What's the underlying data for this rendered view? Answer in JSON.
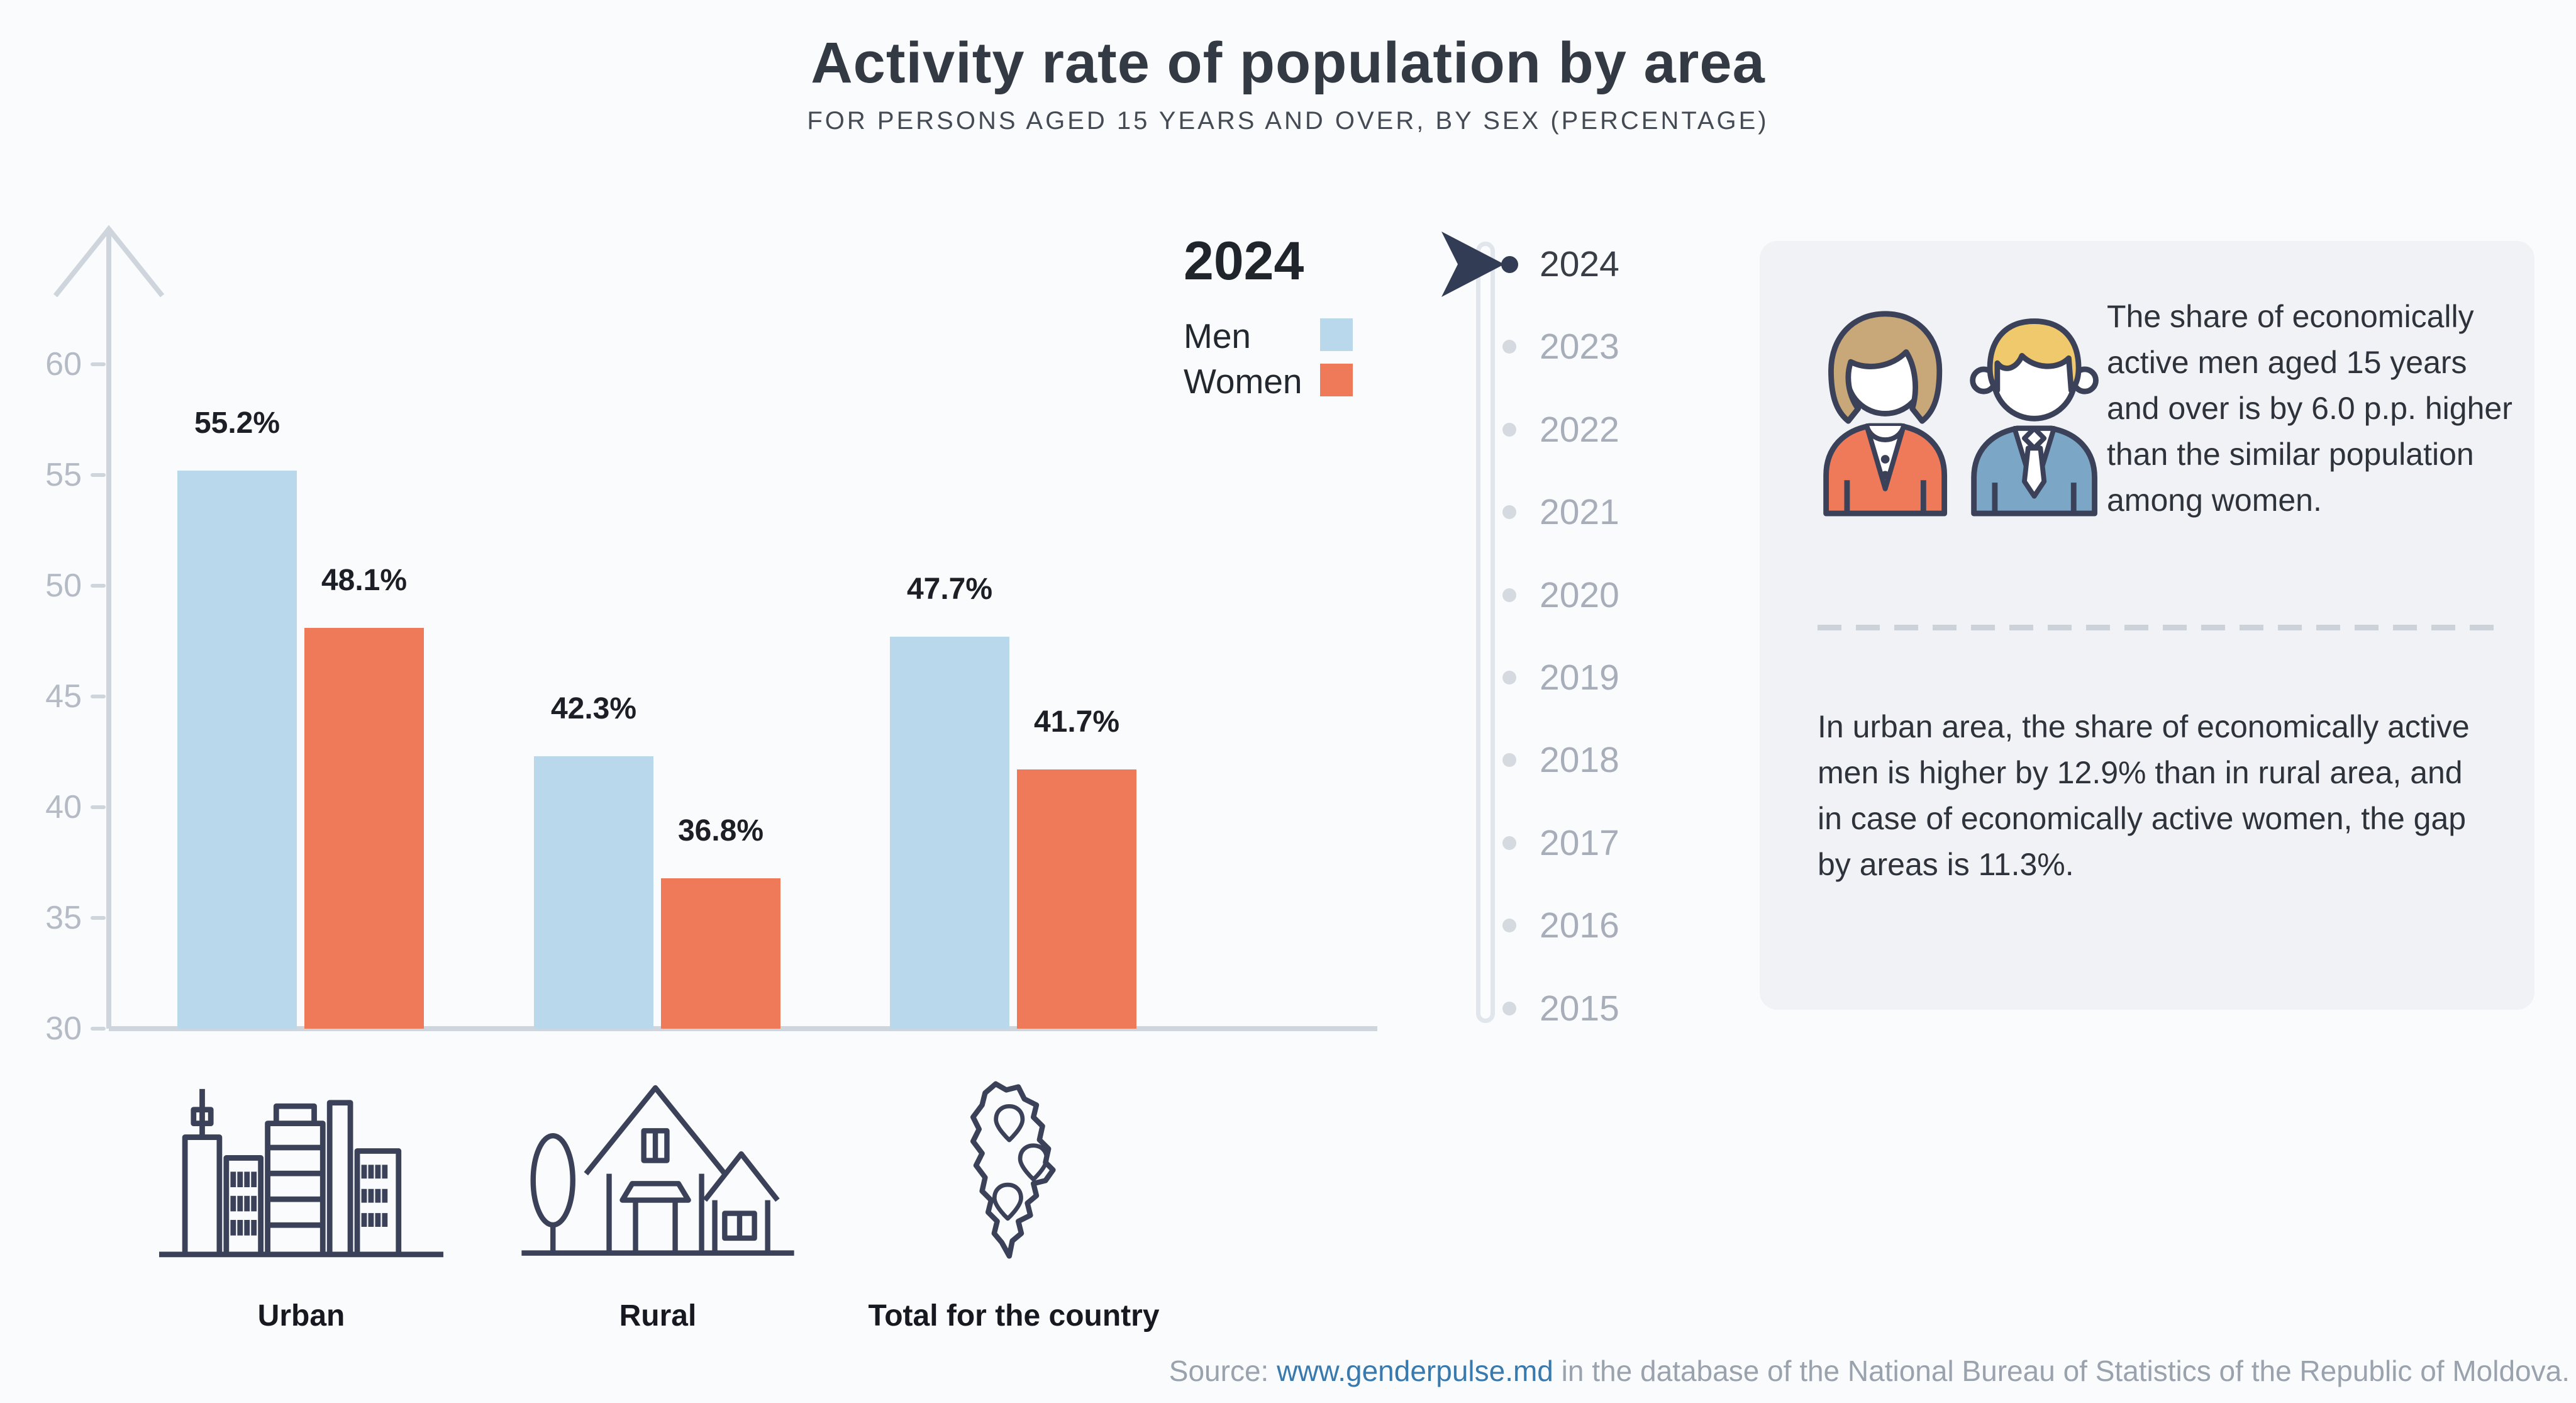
{
  "title": "Activity rate of population by area",
  "subtitle": "FOR PERSONS AGED 15 YEARS AND OVER, BY SEX (PERCENTAGE)",
  "colors": {
    "men": "#b9d8ec",
    "women": "#ee7a5a",
    "navy": "#333c55",
    "outline": "#3a4158",
    "suit": "#7ca6c6",
    "hair_woman": "#c8a878",
    "hair_man": "#f0c96c",
    "axis": "#cfd5dc",
    "tick_text": "#b4bbc5",
    "muted_text": "#a7aeb9",
    "dark_text": "#383d46",
    "link": "#3879ae",
    "card_bg": "#f0f2f6",
    "page_bg": "#fafbfc",
    "dot_inactive": "#d5dae1",
    "divider": "#ccd2d9"
  },
  "legend": {
    "year": "2024",
    "men_label": "Men",
    "women_label": "Women"
  },
  "chart_data": {
    "type": "bar",
    "categories": [
      "Urban",
      "Rural",
      "Total for the country"
    ],
    "series": [
      {
        "name": "Men",
        "color": "#b9d8ec",
        "values": [
          55.2,
          42.3,
          47.7
        ]
      },
      {
        "name": "Women",
        "color": "#ee7a5a",
        "values": [
          48.1,
          36.8,
          41.7
        ]
      }
    ],
    "value_labels": {
      "Men": [
        "55.2%",
        "42.3%",
        "47.7%"
      ],
      "Women": [
        "48.1%",
        "36.8%",
        "41.7%"
      ]
    },
    "title": "Activity rate of population by area",
    "xlabel": "",
    "ylabel": "",
    "ylim": [
      30,
      62
    ],
    "yticks": [
      30,
      35,
      40,
      45,
      50,
      55,
      60
    ],
    "grid": false,
    "legend_position": "top-right",
    "unit": "%"
  },
  "timeline": {
    "years": [
      "2024",
      "2023",
      "2022",
      "2021",
      "2020",
      "2019",
      "2018",
      "2017",
      "2016",
      "2015"
    ],
    "selected": "2024"
  },
  "insights": {
    "text1": "The share of economically active men aged 15 years and over is by 6.0 p.p. higher than the similar population among women.",
    "text2": "In urban area, the share of economically active men is higher by 12.9% than in rural area, and in case of economically active women, the gap by areas is 11.3%."
  },
  "source": {
    "prefix": "Source: ",
    "link": "www.genderpulse.md",
    "suffix": " in the database of the National Bureau of Statistics of the Republic of Moldova."
  }
}
